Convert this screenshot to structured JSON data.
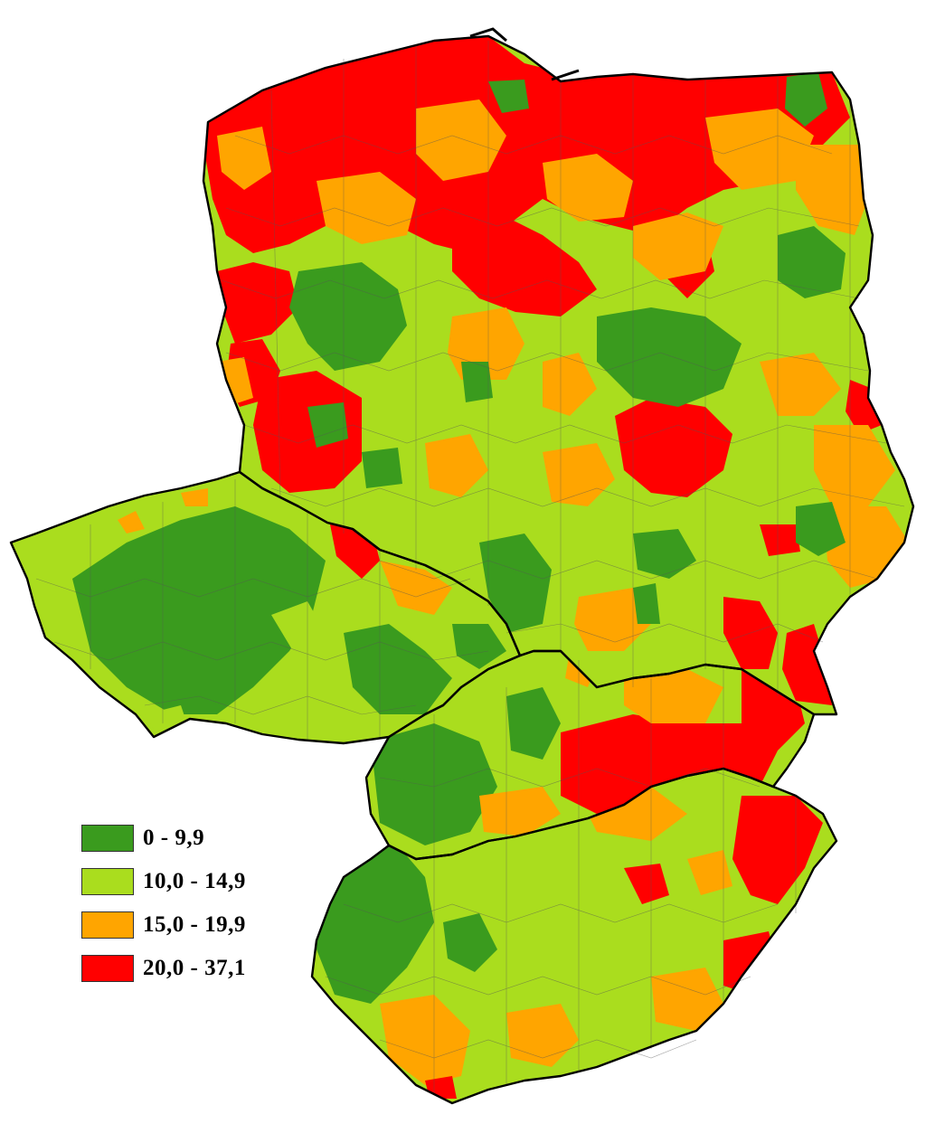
{
  "colors": {
    "dark_green": "#3a9b1e",
    "light_green": "#aadd1e",
    "orange": "#ffa500",
    "red": "#ff0000",
    "border": "#333333"
  },
  "legend": {
    "items": [
      {
        "label": "0 - 9,9",
        "color": "#3a9b1e"
      },
      {
        "label": "10,0 - 14,9",
        "color": "#aadd1e"
      },
      {
        "label": "15,0 - 19,9",
        "color": "#ffa500"
      },
      {
        "label": "20,0 - 37,1",
        "color": "#ff0000"
      }
    ]
  }
}
